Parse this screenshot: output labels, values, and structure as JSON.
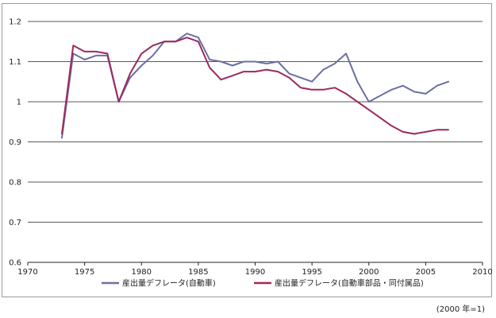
{
  "chart_data": {
    "type": "line",
    "title": "",
    "xlabel": "",
    "ylabel": "",
    "xlim": [
      1970,
      2010
    ],
    "ylim": [
      0.6,
      1.2
    ],
    "x_ticks": [
      "1970",
      "1975",
      "1980",
      "1985",
      "1990",
      "1995",
      "2000",
      "2005",
      "2010"
    ],
    "y_ticks": [
      "0.6",
      "0.7",
      "0.8",
      "0.9",
      "1",
      "1.1",
      "1.2"
    ],
    "grid": "horizontal",
    "legend_position": "bottom",
    "note": "(2000 年=1)",
    "series": [
      {
        "name": "産出量デフレータ(自動車)",
        "color": "#6b6fa3",
        "x": [
          1973,
          1974,
          1975,
          1976,
          1977,
          1978,
          1979,
          1980,
          1981,
          1982,
          1983,
          1984,
          1985,
          1986,
          1987,
          1988,
          1989,
          1990,
          1991,
          1992,
          1993,
          1994,
          1995,
          1996,
          1997,
          1998,
          1999,
          2000,
          2001,
          2002,
          2003,
          2004,
          2005,
          2006,
          2007
        ],
        "values": [
          0.91,
          1.12,
          1.105,
          1.115,
          1.115,
          1.0,
          1.06,
          1.09,
          1.115,
          1.15,
          1.15,
          1.17,
          1.16,
          1.105,
          1.1,
          1.09,
          1.1,
          1.1,
          1.095,
          1.1,
          1.07,
          1.06,
          1.05,
          1.08,
          1.095,
          1.12,
          1.05,
          1.0,
          1.015,
          1.03,
          1.04,
          1.025,
          1.02,
          1.04,
          1.05
        ]
      },
      {
        "name": "産出量デフレータ(自動車部品・同付属品)",
        "color": "#9b2a5c",
        "x": [
          1973,
          1974,
          1975,
          1976,
          1977,
          1978,
          1979,
          1980,
          1981,
          1982,
          1983,
          1984,
          1985,
          1986,
          1987,
          1988,
          1989,
          1990,
          1991,
          1992,
          1993,
          1994,
          1995,
          1996,
          1997,
          1998,
          1999,
          2000,
          2001,
          2002,
          2003,
          2004,
          2005,
          2006,
          2007
        ],
        "values": [
          0.92,
          1.14,
          1.125,
          1.125,
          1.12,
          1.0,
          1.07,
          1.12,
          1.14,
          1.15,
          1.15,
          1.16,
          1.15,
          1.085,
          1.055,
          1.065,
          1.075,
          1.075,
          1.08,
          1.075,
          1.06,
          1.035,
          1.03,
          1.03,
          1.035,
          1.02,
          1.0,
          0.98,
          0.96,
          0.94,
          0.925,
          0.92,
          0.925,
          0.93,
          0.93
        ]
      }
    ]
  }
}
